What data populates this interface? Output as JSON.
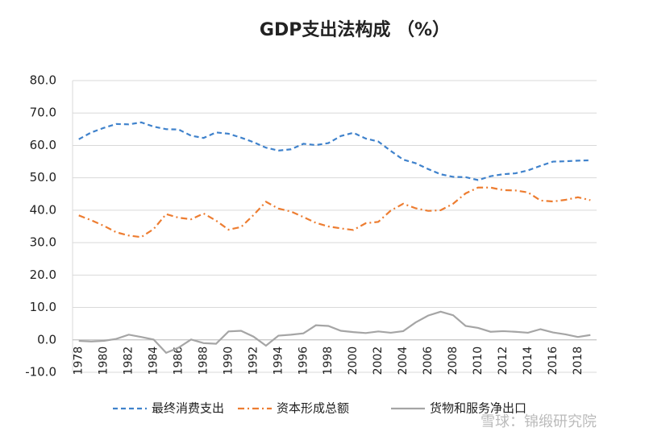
{
  "chart_data": {
    "type": "line",
    "title": "GDP支出法构成 （%）",
    "categories": [
      "1978",
      null,
      "1980",
      null,
      "1982",
      null,
      "1984",
      null,
      "1986",
      null,
      "1988",
      null,
      "1990",
      null,
      "1992",
      null,
      "1994",
      null,
      "1996",
      null,
      "1998",
      null,
      "2000",
      null,
      "2002",
      null,
      "2004",
      null,
      "2006",
      null,
      "2008",
      null,
      "2010",
      null,
      "2012",
      null,
      "2014",
      null,
      "2016",
      null,
      "2018",
      null
    ],
    "series": [
      {
        "name": "最终消费支出",
        "color": "#3f82cc",
        "dash": "dashed",
        "values": [
          61.9,
          64.0,
          65.4,
          66.6,
          66.5,
          67.1,
          65.8,
          65.0,
          64.9,
          63.0,
          62.3,
          64.0,
          63.6,
          62.4,
          61.0,
          59.3,
          58.4,
          58.8,
          60.5,
          60.1,
          60.7,
          62.9,
          63.9,
          62.1,
          61.2,
          58.3,
          55.6,
          54.5,
          52.7,
          51.1,
          50.3,
          50.2,
          49.3,
          50.5,
          51.1,
          51.4,
          52.3,
          53.7,
          55.0,
          55.1,
          55.3,
          55.4
        ]
      },
      {
        "name": "资本形成总额",
        "color": "#ed7d31",
        "dash": "dashdot",
        "values": [
          38.4,
          36.9,
          35.2,
          33.2,
          32.2,
          31.7,
          34.2,
          38.8,
          37.7,
          37.2,
          39.0,
          36.8,
          34.0,
          34.8,
          38.5,
          42.6,
          40.5,
          39.6,
          37.9,
          36.1,
          35.0,
          34.4,
          33.9,
          36.0,
          36.4,
          39.9,
          42.0,
          40.6,
          39.8,
          40.0,
          42.0,
          45.2,
          47.0,
          47.0,
          46.2,
          46.1,
          45.5,
          43.0,
          42.7,
          43.2,
          44.0,
          43.1
        ]
      },
      {
        "name": "货物和服务净出口",
        "color": "#a5a5a5",
        "dash": "solid",
        "values": [
          -0.3,
          -0.5,
          -0.3,
          0.3,
          1.6,
          0.9,
          0.1,
          -4.0,
          -2.4,
          0.1,
          -1.0,
          -1.2,
          2.6,
          2.8,
          1.0,
          -1.8,
          1.3,
          1.6,
          2.0,
          4.5,
          4.3,
          2.8,
          2.4,
          2.1,
          2.6,
          2.2,
          2.7,
          5.4,
          7.5,
          8.7,
          7.6,
          4.3,
          3.7,
          2.5,
          2.7,
          2.5,
          2.2,
          3.3,
          2.3,
          1.7,
          0.9,
          1.5
        ]
      }
    ],
    "ylim": [
      -10,
      80
    ],
    "yticks": [
      {
        "value": -10,
        "label": "-10.0"
      },
      {
        "value": 0,
        "label": "0.0"
      },
      {
        "value": 10,
        "label": "10.0"
      },
      {
        "value": 20,
        "label": "20.0"
      },
      {
        "value": 30,
        "label": "30.0"
      },
      {
        "value": 40,
        "label": "40.0"
      },
      {
        "value": 50,
        "label": "50.0"
      },
      {
        "value": 60,
        "label": "60.0"
      },
      {
        "value": 70,
        "label": "70.0"
      },
      {
        "value": 80,
        "label": "80.0"
      }
    ],
    "grid": true,
    "legend": "bottom",
    "watermark": "雪球：锦缎研究院"
  }
}
